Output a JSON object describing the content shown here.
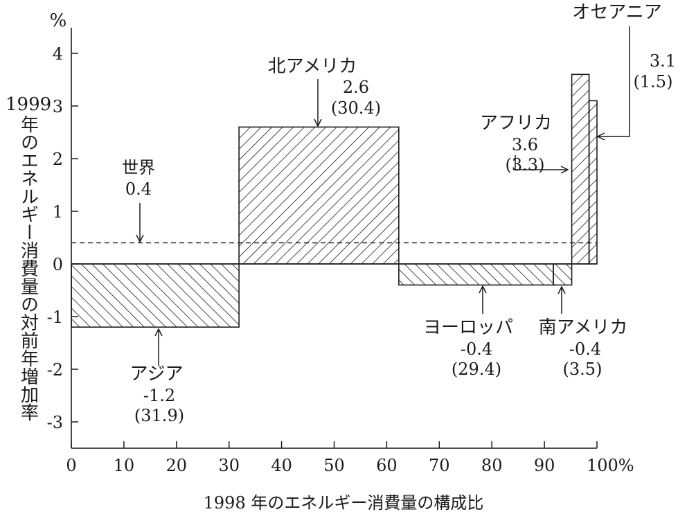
{
  "chart_data": {
    "type": "bar",
    "subtype": "variable-width (marimekko) bar chart",
    "ylabel_year": "1999",
    "ylabel_text": "年のエネルギー消費量の対前年増加率",
    "yunit": "%",
    "xlabel": "1998 年のエネルギー消費量の構成比",
    "xlim": [
      0,
      100
    ],
    "ylim": [
      -3.5,
      4.5
    ],
    "x_ticks": [
      "0",
      "10",
      "20",
      "30",
      "40",
      "50",
      "60",
      "70",
      "80",
      "90",
      "100%"
    ],
    "x_tick_values": [
      0,
      10,
      20,
      30,
      40,
      50,
      60,
      70,
      80,
      90,
      100
    ],
    "y_ticks": [
      "4",
      "3",
      "2",
      "1",
      "0",
      "-1",
      "-2",
      "-3"
    ],
    "y_tick_values": [
      4,
      3,
      2,
      1,
      0,
      -1,
      -2,
      -3
    ],
    "reference_line": {
      "label": "世界",
      "value_text": "0.4",
      "value": 0.4,
      "style": "dashed"
    },
    "series": [
      {
        "name": "アジア",
        "value": -1.2,
        "share": 31.9,
        "value_text": "-1.2",
        "share_text": "(31.9)"
      },
      {
        "name": "北アメリカ",
        "value": 2.6,
        "share": 30.4,
        "value_text": "2.6",
        "share_text": "(30.4)"
      },
      {
        "name": "ヨーロッパ",
        "value": -0.4,
        "share": 29.4,
        "value_text": "-0.4",
        "share_text": "(29.4)"
      },
      {
        "name": "南アメリカ",
        "value": -0.4,
        "share": 3.5,
        "value_text": "-0.4",
        "share_text": "(3.5)"
      },
      {
        "name": "アフリカ",
        "value": 3.6,
        "share": 3.3,
        "value_text": "3.6",
        "share_text": "(3.3)"
      },
      {
        "name": "オセアニア",
        "value": 3.1,
        "share": 1.5,
        "value_text": "3.1",
        "share_text": "(1.5)"
      }
    ]
  }
}
